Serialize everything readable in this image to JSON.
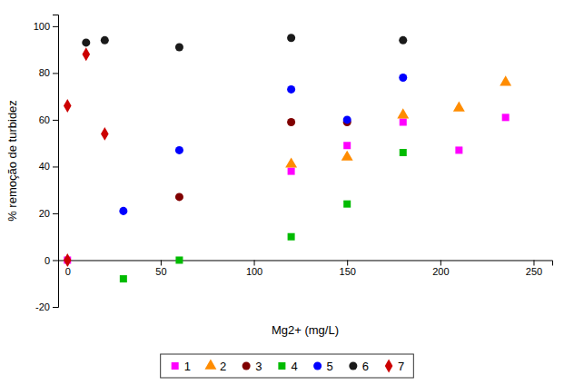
{
  "chart_data": {
    "type": "scatter",
    "xlabel": "Mg2+ (mg/L)",
    "ylabel": "% remoção de turbidez",
    "xlim": [
      -5,
      260
    ],
    "ylim": [
      -20,
      105
    ],
    "xticks": [
      0,
      50,
      100,
      150,
      200,
      250
    ],
    "yticks": [
      -20,
      0,
      20,
      40,
      60,
      80,
      100
    ],
    "grid": false,
    "legend": "bottom",
    "series": [
      {
        "name": "1",
        "color": "#ff00ff",
        "marker": "square",
        "x": [
          0,
          120,
          150,
          180,
          210,
          235
        ],
        "values": [
          0,
          38,
          49,
          59,
          47,
          61
        ]
      },
      {
        "name": "2",
        "color": "#ff8c00",
        "marker": "triangle",
        "x": [
          120,
          150,
          180,
          210,
          235
        ],
        "values": [
          41,
          44,
          62,
          65,
          76
        ]
      },
      {
        "name": "3",
        "color": "#800000",
        "marker": "circle",
        "x": [
          60,
          120,
          150
        ],
        "values": [
          27,
          59,
          59
        ]
      },
      {
        "name": "4",
        "color": "#00bb00",
        "marker": "square",
        "x": [
          30,
          60,
          120,
          150,
          180
        ],
        "values": [
          -8,
          0,
          10,
          24,
          46
        ]
      },
      {
        "name": "5",
        "color": "#0000ff",
        "marker": "circle",
        "x": [
          30,
          60,
          120,
          150,
          180
        ],
        "values": [
          21,
          47,
          73,
          60,
          78
        ]
      },
      {
        "name": "6",
        "color": "#1a1a1a",
        "marker": "circle",
        "x": [
          10,
          20,
          60,
          120,
          180
        ],
        "values": [
          93,
          94,
          91,
          95,
          94
        ]
      },
      {
        "name": "7",
        "color": "#cc0000",
        "marker": "diamond",
        "x": [
          0,
          0,
          10,
          20
        ],
        "values": [
          0,
          66,
          88,
          54
        ]
      }
    ]
  }
}
